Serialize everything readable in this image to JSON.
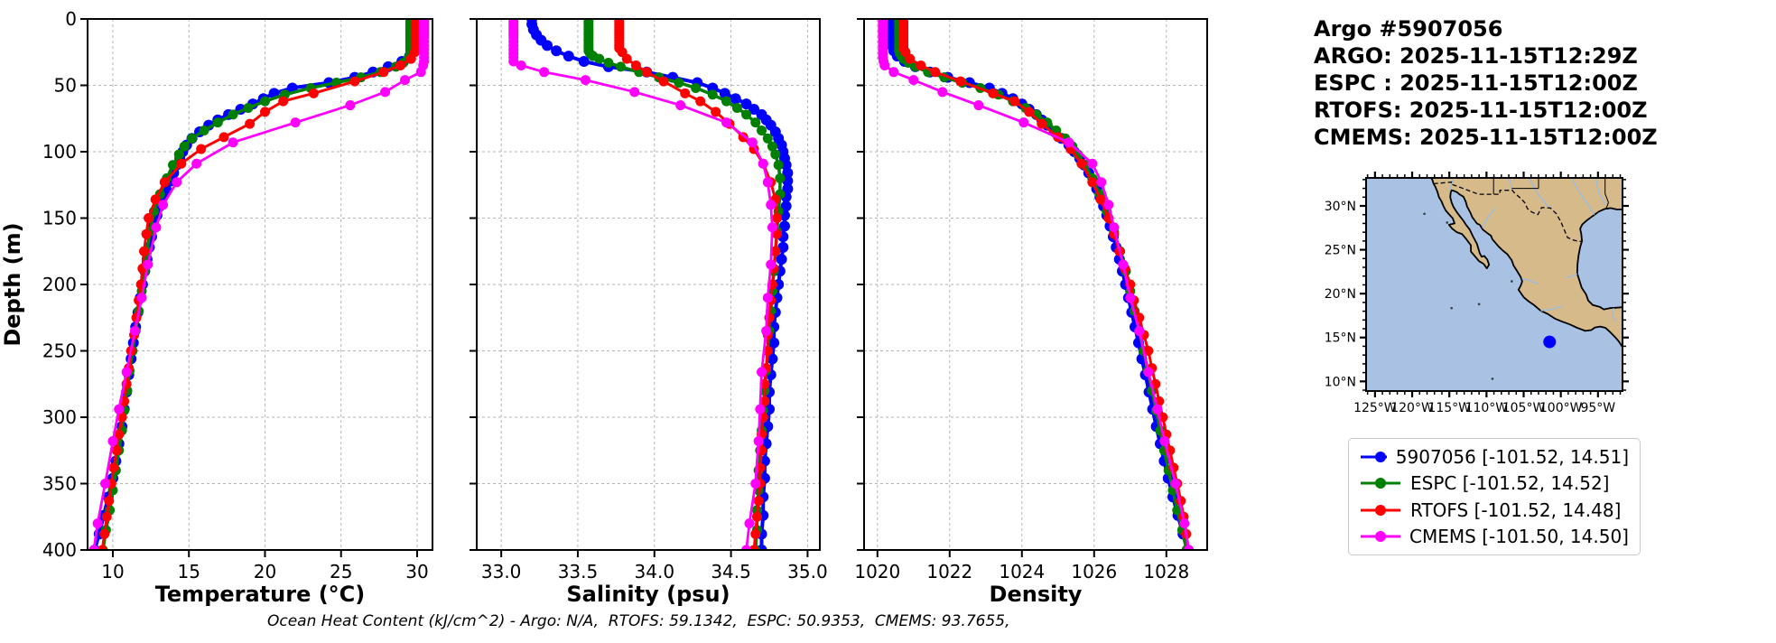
{
  "info": {
    "title": "Argo #5907056",
    "lines": [
      "ARGO: 2025-11-15T12:29Z",
      "ESPC : 2025-11-15T12:00Z",
      "RTOFS: 2025-11-15T12:00Z",
      "CMEMS: 2025-11-15T12:00Z"
    ]
  },
  "footnote": "Ocean Heat Content (kJ/cm^2) - Argo: N/A,  RTOFS: 59.1342,  ESPC: 50.9353,  CMEMS: 93.7655,",
  "legend": {
    "items": [
      {
        "label": "5907056 [-101.52, 14.51]",
        "color": "#0000ff"
      },
      {
        "label": "ESPC [-101.52, 14.52]",
        "color": "#008000"
      },
      {
        "label": "RTOFS [-101.52, 14.48]",
        "color": "#ff0000"
      },
      {
        "label": "CMEMS [-101.50, 14.50]",
        "color": "#ff00ff"
      }
    ]
  },
  "chart_data": {
    "type": "line",
    "ylabel": "Depth (m)",
    "ylim": [
      400,
      0
    ],
    "yticks": [
      0,
      50,
      100,
      150,
      200,
      250,
      300,
      350,
      400
    ],
    "ytick_labels": [
      "0",
      "50",
      "100",
      "150",
      "200",
      "250",
      "300",
      "350",
      "400"
    ],
    "grid": true,
    "panels": [
      {
        "var": "temperature",
        "xlabel": "Temperature (°C)",
        "xlim": [
          8.34,
          31.01
        ],
        "xticks": [
          10,
          15,
          20,
          25,
          30
        ],
        "xtick_labels": [
          "10",
          "15",
          "20",
          "25",
          "30"
        ]
      },
      {
        "var": "salinity",
        "xlabel": "Salinity (psu)",
        "xlim": [
          32.84,
          35.08
        ],
        "xticks": [
          33.0,
          33.5,
          34.0,
          34.5,
          35.0
        ],
        "xtick_labels": [
          "33.0",
          "33.5",
          "34.0",
          "34.5",
          "35.0"
        ]
      },
      {
        "var": "density",
        "xlabel": "Density",
        "xlim": [
          1019.63,
          1029.13
        ],
        "xticks": [
          1020,
          1022,
          1024,
          1026,
          1028
        ],
        "xtick_labels": [
          "1020",
          "1022",
          "1024",
          "1026",
          "1028"
        ]
      }
    ],
    "profiles": [
      {
        "name": "5907056",
        "color": "#0000ff",
        "linewidth": 4,
        "markersize": 6,
        "depths": [
          0,
          4,
          8,
          12,
          16,
          20,
          24,
          28,
          32,
          36,
          40,
          44,
          48,
          52,
          56,
          60,
          64,
          68,
          72,
          76,
          80,
          85,
          90,
          95,
          100,
          105,
          110,
          116,
          122,
          128,
          134,
          141,
          148,
          156,
          164,
          172,
          181,
          190,
          200,
          210,
          221,
          232,
          244,
          256,
          268,
          281,
          294,
          307,
          320,
          333,
          346,
          360,
          374,
          388,
          400
        ],
        "temperature": [
          30.15,
          30.15,
          30.15,
          30.12,
          30.1,
          30.0,
          29.8,
          29.5,
          29.0,
          28.1,
          27.1,
          25.9,
          24.2,
          21.8,
          20.6,
          19.9,
          19.2,
          18.4,
          17.6,
          16.9,
          16.3,
          15.7,
          15.2,
          14.85,
          14.6,
          14.4,
          14.2,
          14.0,
          13.8,
          13.5,
          13.3,
          13.1,
          12.9,
          12.7,
          12.55,
          12.4,
          12.25,
          12.1,
          11.95,
          11.8,
          11.65,
          11.5,
          11.35,
          11.2,
          11.05,
          10.9,
          10.75,
          10.6,
          10.4,
          10.2,
          10.0,
          9.7,
          9.4,
          9.1,
          8.8
        ],
        "salinity": [
          33.2,
          33.2,
          33.21,
          33.23,
          33.26,
          33.3,
          33.36,
          33.44,
          33.54,
          33.7,
          33.95,
          34.12,
          34.28,
          34.38,
          34.46,
          34.53,
          34.6,
          34.65,
          34.7,
          34.73,
          34.76,
          34.79,
          34.81,
          34.83,
          34.84,
          34.85,
          34.86,
          34.87,
          34.87,
          34.87,
          34.86,
          34.86,
          34.85,
          34.85,
          34.84,
          34.84,
          34.83,
          34.82,
          34.81,
          34.8,
          34.79,
          34.78,
          34.78,
          34.77,
          34.76,
          34.75,
          34.75,
          34.74,
          34.73,
          34.72,
          34.72,
          34.71,
          34.71,
          34.7,
          34.7
        ],
        "density": [
          1020.35,
          1020.35,
          1020.36,
          1020.37,
          1020.38,
          1020.4,
          1020.45,
          1020.55,
          1020.75,
          1021.05,
          1021.45,
          1021.95,
          1022.55,
          1023.1,
          1023.45,
          1023.75,
          1024.0,
          1024.2,
          1024.4,
          1024.55,
          1024.7,
          1024.9,
          1025.1,
          1025.3,
          1025.45,
          1025.6,
          1025.72,
          1025.85,
          1025.97,
          1026.07,
          1026.16,
          1026.26,
          1026.35,
          1026.44,
          1026.53,
          1026.61,
          1026.7,
          1026.78,
          1026.87,
          1026.95,
          1027.04,
          1027.13,
          1027.23,
          1027.32,
          1027.42,
          1027.52,
          1027.62,
          1027.72,
          1027.83,
          1027.94,
          1028.05,
          1028.18,
          1028.32,
          1028.46,
          1028.58
        ]
      },
      {
        "name": "ESPC",
        "color": "#008000",
        "linewidth": 3.5,
        "markersize": 5.5,
        "depths": [
          0,
          2,
          4,
          6,
          8,
          10,
          12,
          14,
          16,
          18,
          20,
          22,
          24,
          26,
          28,
          30,
          33,
          36,
          40,
          44,
          48,
          52,
          57,
          62,
          67,
          72,
          78,
          84,
          90,
          96,
          102,
          110,
          120,
          132,
          145,
          160,
          175,
          190,
          205,
          220,
          235,
          250,
          265,
          280,
          295,
          310,
          325,
          340,
          355,
          370,
          385,
          400
        ],
        "temperature": [
          29.55,
          29.55,
          29.55,
          29.55,
          29.55,
          29.55,
          29.55,
          29.55,
          29.55,
          29.55,
          29.55,
          29.55,
          29.55,
          29.55,
          29.5,
          29.4,
          29.1,
          28.6,
          27.6,
          26.3,
          24.7,
          23.0,
          21.3,
          20.0,
          18.9,
          17.9,
          16.9,
          16.0,
          15.2,
          14.7,
          14.35,
          13.95,
          13.55,
          13.1,
          12.7,
          12.45,
          12.25,
          12.1,
          11.9,
          11.7,
          11.5,
          11.3,
          11.1,
          10.95,
          10.75,
          10.6,
          10.4,
          10.2,
          10.0,
          9.8,
          9.55,
          9.35
        ],
        "salinity": [
          33.57,
          33.57,
          33.57,
          33.57,
          33.57,
          33.57,
          33.57,
          33.57,
          33.57,
          33.57,
          33.57,
          33.57,
          33.57,
          33.58,
          33.6,
          33.64,
          33.7,
          33.78,
          33.9,
          34.03,
          34.16,
          34.27,
          34.38,
          34.47,
          34.54,
          34.6,
          34.66,
          34.7,
          34.74,
          34.77,
          34.79,
          34.81,
          34.82,
          34.82,
          34.81,
          34.8,
          34.79,
          34.78,
          34.77,
          34.76,
          34.75,
          34.74,
          34.73,
          34.72,
          34.71,
          34.7,
          34.69,
          34.68,
          34.68,
          34.67,
          34.67,
          34.66
        ],
        "density": [
          1020.6,
          1020.6,
          1020.6,
          1020.6,
          1020.6,
          1020.6,
          1020.6,
          1020.6,
          1020.6,
          1020.6,
          1020.6,
          1020.6,
          1020.6,
          1020.62,
          1020.66,
          1020.72,
          1020.85,
          1021.05,
          1021.4,
          1021.85,
          1022.35,
          1022.85,
          1023.35,
          1023.75,
          1024.1,
          1024.4,
          1024.7,
          1024.95,
          1025.2,
          1025.4,
          1025.55,
          1025.75,
          1025.95,
          1026.15,
          1026.35,
          1026.55,
          1026.72,
          1026.88,
          1027.0,
          1027.12,
          1027.25,
          1027.37,
          1027.49,
          1027.6,
          1027.72,
          1027.83,
          1027.94,
          1028.06,
          1028.18,
          1028.3,
          1028.44,
          1028.56
        ]
      },
      {
        "name": "RTOFS",
        "color": "#ff0000",
        "linewidth": 3,
        "markersize": 5.5,
        "depths": [
          0,
          2,
          4,
          6,
          8,
          10,
          12,
          14,
          16,
          18,
          20,
          22,
          25,
          30,
          35,
          40,
          47,
          56,
          62,
          70,
          79,
          89,
          98,
          109,
          123,
          136,
          150,
          162,
          175,
          188,
          200,
          212,
          225,
          238,
          250,
          263,
          275,
          288,
          300,
          313,
          325,
          338,
          350,
          363,
          375,
          388,
          400
        ],
        "temperature": [
          29.9,
          29.9,
          29.9,
          29.9,
          29.9,
          29.9,
          29.9,
          29.9,
          29.9,
          29.9,
          29.9,
          29.9,
          29.85,
          29.6,
          28.9,
          27.8,
          25.9,
          23.2,
          21.2,
          20.0,
          19.0,
          17.3,
          15.8,
          14.5,
          13.4,
          12.8,
          12.35,
          12.2,
          12.05,
          11.95,
          11.85,
          11.7,
          11.55,
          11.4,
          11.2,
          11.05,
          10.9,
          10.75,
          10.6,
          10.4,
          10.25,
          10.05,
          9.9,
          9.75,
          9.6,
          9.45,
          9.3
        ],
        "salinity": [
          33.77,
          33.77,
          33.77,
          33.77,
          33.77,
          33.77,
          33.77,
          33.77,
          33.77,
          33.77,
          33.77,
          33.77,
          33.79,
          33.82,
          33.88,
          33.95,
          34.06,
          34.2,
          34.3,
          34.4,
          34.49,
          34.58,
          34.65,
          34.71,
          34.76,
          34.79,
          34.8,
          34.8,
          34.79,
          34.78,
          34.77,
          34.76,
          34.75,
          34.74,
          34.74,
          34.73,
          34.72,
          34.72,
          34.71,
          34.7,
          34.7,
          34.69,
          34.69,
          34.68,
          34.67,
          34.66,
          34.65
        ],
        "density": [
          1020.72,
          1020.72,
          1020.72,
          1020.72,
          1020.72,
          1020.72,
          1020.72,
          1020.72,
          1020.72,
          1020.72,
          1020.72,
          1020.72,
          1020.78,
          1020.9,
          1021.2,
          1021.6,
          1022.3,
          1023.2,
          1023.8,
          1024.2,
          1024.55,
          1025.0,
          1025.35,
          1025.65,
          1025.95,
          1026.18,
          1026.4,
          1026.55,
          1026.7,
          1026.85,
          1027.0,
          1027.1,
          1027.25,
          1027.38,
          1027.5,
          1027.6,
          1027.7,
          1027.8,
          1027.9,
          1028.0,
          1028.1,
          1028.2,
          1028.3,
          1028.4,
          1028.48,
          1028.55,
          1028.62
        ]
      },
      {
        "name": "CMEMS",
        "color": "#ff00ff",
        "linewidth": 2.8,
        "markersize": 5.5,
        "depths": [
          0,
          2,
          4,
          6,
          8,
          10,
          12,
          14,
          17,
          20,
          23,
          26,
          29,
          32,
          35,
          40,
          46,
          55,
          65,
          78,
          93,
          109,
          123,
          140,
          157,
          185,
          210,
          235,
          266,
          294,
          318,
          350,
          380,
          400
        ],
        "temperature": [
          30.45,
          30.45,
          30.45,
          30.45,
          30.45,
          30.45,
          30.45,
          30.45,
          30.45,
          30.45,
          30.45,
          30.45,
          30.45,
          30.45,
          30.4,
          30.25,
          29.2,
          27.9,
          25.6,
          22.0,
          17.9,
          15.5,
          14.2,
          13.3,
          12.85,
          12.3,
          11.9,
          11.45,
          10.9,
          10.4,
          10.0,
          9.5,
          9.0,
          8.75
        ],
        "salinity": [
          33.08,
          33.08,
          33.08,
          33.08,
          33.08,
          33.08,
          33.08,
          33.08,
          33.08,
          33.08,
          33.08,
          33.08,
          33.08,
          33.08,
          33.13,
          33.28,
          33.55,
          33.87,
          34.17,
          34.47,
          34.64,
          34.71,
          34.74,
          34.76,
          34.77,
          34.76,
          34.74,
          34.73,
          34.7,
          34.69,
          34.68,
          34.66,
          34.62,
          34.6
        ],
        "density": [
          1020.15,
          1020.15,
          1020.15,
          1020.15,
          1020.15,
          1020.15,
          1020.15,
          1020.15,
          1020.15,
          1020.15,
          1020.15,
          1020.15,
          1020.15,
          1020.17,
          1020.2,
          1020.45,
          1021.0,
          1021.8,
          1022.8,
          1024.05,
          1025.3,
          1025.95,
          1026.2,
          1026.4,
          1026.55,
          1026.8,
          1027.0,
          1027.25,
          1027.5,
          1027.75,
          1027.95,
          1028.25,
          1028.5,
          1028.62
        ]
      }
    ]
  },
  "map": {
    "lon_ticks": [
      -125,
      -120,
      -115,
      -110,
      -105,
      -100,
      -95
    ],
    "lon_tick_labels": [
      "125°W",
      "120°W",
      "115°W",
      "110°W",
      "105°W",
      "100°W",
      "95°W"
    ],
    "lat_ticks": [
      30,
      25,
      20,
      15,
      10
    ],
    "lat_tick_labels": [
      "30°N",
      "25°N",
      "20°N",
      "15°N",
      "10°N"
    ],
    "marker": {
      "lon": -101.51,
      "lat": 14.5,
      "color": "#0000ff"
    },
    "land_color": "#d7ba8a",
    "ocean_color": "#a9c2e4"
  }
}
